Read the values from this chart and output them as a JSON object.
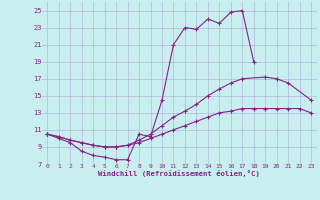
{
  "xlabel": "Windchill (Refroidissement éolien,°C)",
  "bg_color": "#c8eef0",
  "grid_color": "#b0b8d8",
  "line_color": "#882288",
  "xlim": [
    -0.5,
    23.5
  ],
  "ylim": [
    7,
    26
  ],
  "xticks": [
    0,
    1,
    2,
    3,
    4,
    5,
    6,
    7,
    8,
    9,
    10,
    11,
    12,
    13,
    14,
    15,
    16,
    17,
    18,
    19,
    20,
    21,
    22,
    23
  ],
  "yticks": [
    7,
    9,
    11,
    13,
    15,
    17,
    19,
    21,
    23,
    25
  ],
  "l1_x": [
    0,
    1,
    2,
    3,
    4,
    5,
    6,
    7,
    8,
    9,
    10,
    11,
    12,
    13,
    14,
    15,
    16,
    17,
    18
  ],
  "l1_y": [
    10.5,
    10.0,
    9.5,
    8.5,
    8.0,
    7.8,
    7.5,
    7.5,
    10.5,
    10.2,
    14.5,
    21.0,
    23.0,
    22.8,
    24.0,
    23.5,
    24.8,
    25.0,
    19.0
  ],
  "l2_x": [
    0,
    1,
    2,
    3,
    4,
    5,
    6,
    7,
    8,
    9,
    10,
    11,
    12,
    13,
    14,
    15,
    16,
    17,
    19,
    20,
    21,
    23
  ],
  "l2_y": [
    10.5,
    10.2,
    9.8,
    9.5,
    9.2,
    9.0,
    9.0,
    9.2,
    9.8,
    10.5,
    11.5,
    12.5,
    13.2,
    14.0,
    15.0,
    15.8,
    16.5,
    17.0,
    17.2,
    17.0,
    16.5,
    14.5
  ],
  "l3_x": [
    0,
    1,
    2,
    3,
    4,
    5,
    6,
    7,
    8,
    9,
    10,
    11,
    12,
    13,
    14,
    15,
    16,
    17,
    18,
    19,
    20,
    21,
    22,
    23
  ],
  "l3_y": [
    10.5,
    10.2,
    9.8,
    9.5,
    9.2,
    9.0,
    9.0,
    9.2,
    9.5,
    10.0,
    10.5,
    11.0,
    11.5,
    12.0,
    12.5,
    13.0,
    13.2,
    13.5,
    13.5,
    13.5,
    13.5,
    13.5,
    13.5,
    13.0
  ]
}
